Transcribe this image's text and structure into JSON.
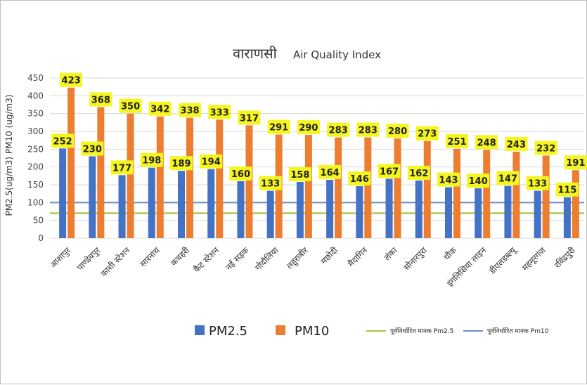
{
  "chart_data": {
    "type": "bar",
    "title_hi": "वाराणसी",
    "title_en": "Air Quality Index",
    "ylabel": "PM2.5(ug/m3) PM10 (ug/m3)",
    "ylim": [
      0,
      450
    ],
    "yticks": [
      0,
      50,
      100,
      150,
      200,
      250,
      300,
      350,
      400,
      450
    ],
    "grid": true,
    "legend_position": "bottom",
    "categories": [
      "आशापुर",
      "पाण्डेयपुर",
      "काशी स्टेशन",
      "सारनाथ",
      "कचहरी",
      "कैंट स्टेशन",
      "नई सड़क",
      "गोदौलिया",
      "लहुराबीर",
      "मछोदी",
      "मैदागिन",
      "लंका",
      "सोनारपुरा",
      "चौक",
      "इंगलिसिया लाइन",
      "डीएलडब्ल्यू",
      "महमूरगंज",
      "रविंद्रपुरी"
    ],
    "series": [
      {
        "name": "PM2.5",
        "color": "#4472C4",
        "values": [
          252,
          230,
          177,
          198,
          189,
          194,
          160,
          133,
          158,
          164,
          146,
          167,
          162,
          143,
          140,
          147,
          133,
          115
        ]
      },
      {
        "name": "PM10",
        "color": "#ED7D31",
        "values": [
          423,
          368,
          350,
          342,
          338,
          333,
          317,
          291,
          290,
          283,
          283,
          280,
          273,
          251,
          248,
          243,
          232,
          191
        ]
      }
    ],
    "reference_lines": [
      {
        "name": "पूर्वनिर्धारित मानक Pm2.5",
        "value": 70,
        "color": "#A9C23F"
      },
      {
        "name": "पूर्वनिर्धारित मानक Pm10",
        "value": 100,
        "color": "#6F8FC9"
      }
    ],
    "label_box_color": "#F5F520"
  }
}
